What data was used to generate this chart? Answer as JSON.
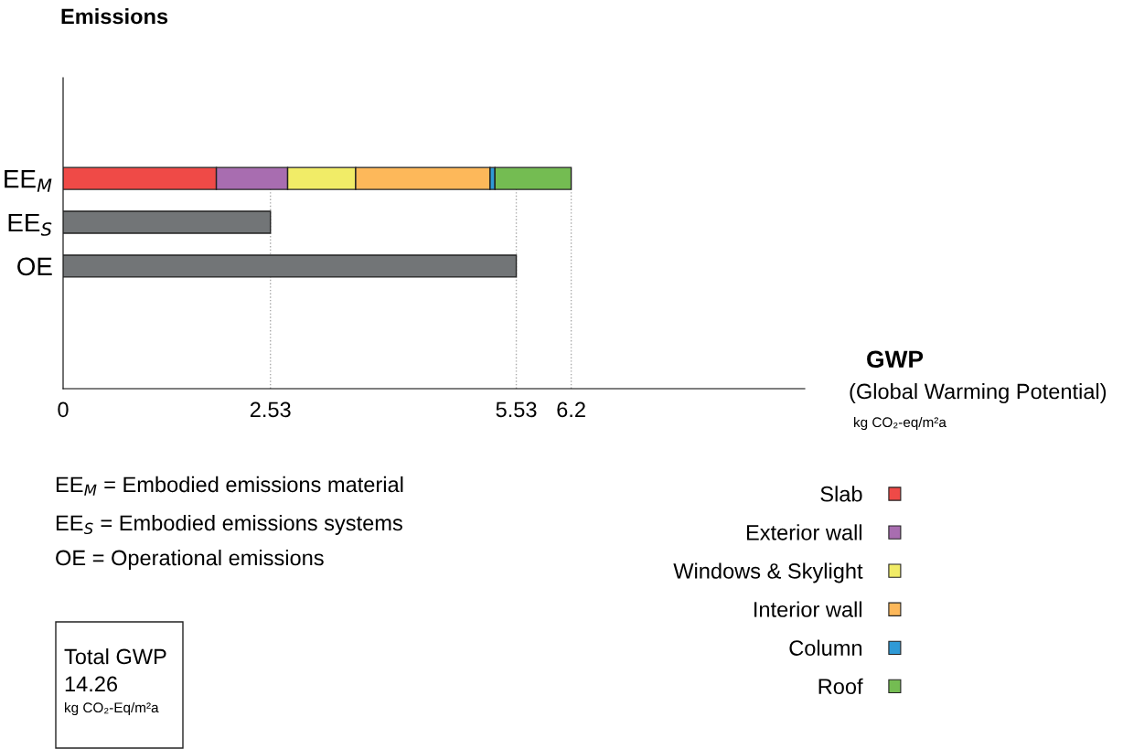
{
  "chart_data": {
    "type": "bar",
    "orientation": "horizontal",
    "stacked": true,
    "title": "Emissions",
    "categories": [
      "EE$_{M}$",
      "EE$_{S}$",
      "OE"
    ],
    "series": [
      {
        "name": "Slab",
        "color": "#ef4a47",
        "values": [
          1.87,
          null,
          null
        ]
      },
      {
        "name": "Exterior wall",
        "color": "#a86db0",
        "values": [
          0.87,
          null,
          null
        ]
      },
      {
        "name": "Windows & Skylight",
        "color": "#f1ec67",
        "values": [
          0.83,
          null,
          null
        ]
      },
      {
        "name": "Interior wall",
        "color": "#fdb85a",
        "values": [
          1.64,
          null,
          null
        ]
      },
      {
        "name": "Column",
        "color": "#2f9ad6",
        "values": [
          0.06,
          null,
          null
        ]
      },
      {
        "name": "Roof",
        "color": "#74bc52",
        "values": [
          0.93,
          null,
          null
        ]
      },
      {
        "color": "#727577",
        "values": [
          null,
          2.53,
          5.53
        ]
      }
    ],
    "xlim": [
      0,
      9.05
    ],
    "xticks": [
      0,
      2.53,
      5.53,
      6.2
    ],
    "ref_lines": [
      {
        "axis": "x",
        "value": 2.53,
        "color": "#aaaaaa",
        "line_style": "dotted"
      },
      {
        "axis": "x",
        "value": 5.53,
        "color": "#aaaaaa",
        "line_style": "dotted"
      },
      {
        "axis": "x",
        "value": 6.2,
        "color": "#aaaaaa",
        "line_style": "dotted"
      }
    ],
    "legend": "right",
    "legend_title": "GWP",
    "annotations": [
      "(Global Warming Potential)",
      "kg CO₂-eq/m²a",
      "EE$_{M}$ = Embodied emissions material",
      "EE$_{S}$ = Embodied emissions systems",
      "OE = Operational emissions",
      "Total GWP",
      "14.26",
      "kg CO₂-Eq/m²a"
    ]
  }
}
